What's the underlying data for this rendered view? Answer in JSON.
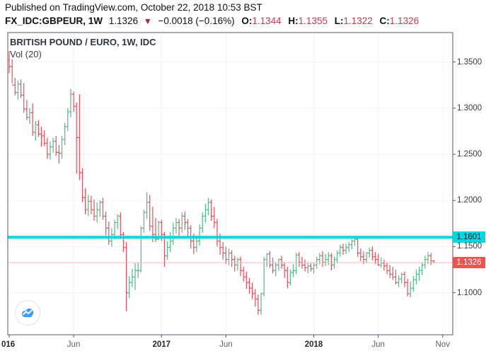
{
  "header": {
    "published_line": "Published on TradingView.com, October 22, 2018 10:53 BST",
    "symbol": "FX_IDC:GBPEUR, 1W",
    "last_price": "1.1326",
    "direction_icon": "down-triangle",
    "change": "−0.0018 (−0.16%)",
    "ohlc": [
      {
        "label": "O:",
        "value": "1.1344"
      },
      {
        "label": "H:",
        "value": "1.1355"
      },
      {
        "label": "L:",
        "value": "1.1322"
      },
      {
        "label": "C:",
        "value": "1.1326"
      }
    ]
  },
  "legend": {
    "title": "BRITISH POUND / EURO, 1W, IDC",
    "indicator": "Vol (20)"
  },
  "levels": {
    "resistance": {
      "price": "1.1601",
      "value": 1.1601
    },
    "last": {
      "price": "1.1326",
      "value": 1.1326
    }
  },
  "y_axis": {
    "ticks": [
      {
        "label": "1.3500",
        "value": 1.35
      },
      {
        "label": "1.3000",
        "value": 1.3
      },
      {
        "label": "1.2500",
        "value": 1.25
      },
      {
        "label": "1.2000",
        "value": 1.2
      },
      {
        "label": "1.1500",
        "value": 1.15
      },
      {
        "label": "1.1000",
        "value": 1.1
      }
    ]
  },
  "x_axis": {
    "ticks": [
      {
        "label": "016",
        "week": 0,
        "year": true,
        "clipped": true
      },
      {
        "label": "Jun",
        "week": 22,
        "year": false,
        "clipped": false
      },
      {
        "label": "2017",
        "week": 52,
        "year": true,
        "clipped": false
      },
      {
        "label": "Jun",
        "week": 74,
        "year": false,
        "clipped": false
      },
      {
        "label": "2018",
        "week": 104,
        "year": true,
        "clipped": false
      },
      {
        "label": "Jun",
        "week": 126,
        "year": false,
        "clipped": false
      },
      {
        "label": "Nov",
        "week": 148,
        "year": false,
        "clipped": false
      }
    ]
  },
  "colors": {
    "up": "#53b987",
    "down": "#eb4d5c",
    "resistance_line": "#00d7e2",
    "last_price_line": "#f6b9bf",
    "grid": "#f2f3f5",
    "frame": "#555a64",
    "value_red": "#c83a4b",
    "logo_blue": "#3d9df4"
  },
  "chart_data": {
    "type": "ohlc-bar",
    "title": "BRITISH POUND / EURO, 1W, IDC",
    "symbol": "FX_IDC:GBPEUR",
    "interval": "1W",
    "x_range": [
      "Jan 2016",
      "Nov 2018"
    ],
    "y_range": [
      1.055,
      1.38
    ],
    "gridlines": true,
    "levels": [
      {
        "name": "resistance",
        "value": 1.1601
      },
      {
        "name": "last-price",
        "value": 1.1326
      }
    ],
    "last_bar_ohlc": {
      "o": 1.1344,
      "h": 1.1355,
      "l": 1.1322,
      "c": 1.1326
    },
    "bars_format": [
      "open",
      "high",
      "low",
      "close"
    ],
    "bars": [
      [
        1.352,
        1.362,
        1.338,
        1.345
      ],
      [
        1.345,
        1.353,
        1.327,
        1.325
      ],
      [
        1.325,
        1.333,
        1.314,
        1.317
      ],
      [
        1.317,
        1.33,
        1.309,
        1.326
      ],
      [
        1.326,
        1.331,
        1.311,
        1.314
      ],
      [
        1.314,
        1.327,
        1.295,
        1.299
      ],
      [
        1.299,
        1.309,
        1.287,
        1.29
      ],
      [
        1.29,
        1.3,
        1.283,
        1.295
      ],
      [
        1.295,
        1.305,
        1.27,
        1.274
      ],
      [
        1.274,
        1.286,
        1.265,
        1.282
      ],
      [
        1.282,
        1.287,
        1.269,
        1.272
      ],
      [
        1.272,
        1.28,
        1.258,
        1.27
      ],
      [
        1.27,
        1.276,
        1.259,
        1.262
      ],
      [
        1.262,
        1.268,
        1.245,
        1.25
      ],
      [
        1.25,
        1.264,
        1.244,
        1.258
      ],
      [
        1.258,
        1.268,
        1.252,
        1.264
      ],
      [
        1.264,
        1.27,
        1.248,
        1.252
      ],
      [
        1.252,
        1.26,
        1.24,
        1.251
      ],
      [
        1.251,
        1.27,
        1.245,
        1.266
      ],
      [
        1.266,
        1.284,
        1.26,
        1.28
      ],
      [
        1.28,
        1.3,
        1.275,
        1.296
      ],
      [
        1.296,
        1.321,
        1.29,
        1.315
      ],
      [
        1.315,
        1.318,
        1.296,
        1.302
      ],
      [
        1.302,
        1.306,
        1.229,
        1.268
      ],
      [
        1.268,
        1.315,
        1.222,
        1.23
      ],
      [
        1.23,
        1.235,
        1.198,
        1.203
      ],
      [
        1.203,
        1.213,
        1.185,
        1.19
      ],
      [
        1.19,
        1.206,
        1.183,
        1.199
      ],
      [
        1.199,
        1.205,
        1.185,
        1.19
      ],
      [
        1.19,
        1.201,
        1.178,
        1.183
      ],
      [
        1.183,
        1.198,
        1.176,
        1.19
      ],
      [
        1.19,
        1.2,
        1.182,
        1.198
      ],
      [
        1.198,
        1.203,
        1.179,
        1.183
      ],
      [
        1.183,
        1.188,
        1.162,
        1.17
      ],
      [
        1.17,
        1.177,
        1.152,
        1.156
      ],
      [
        1.156,
        1.17,
        1.15,
        1.163
      ],
      [
        1.163,
        1.179,
        1.158,
        1.176
      ],
      [
        1.176,
        1.185,
        1.169,
        1.183
      ],
      [
        1.183,
        1.187,
        1.158,
        1.163
      ],
      [
        1.163,
        1.166,
        1.144,
        1.149
      ],
      [
        1.149,
        1.155,
        1.08,
        1.1
      ],
      [
        1.1,
        1.118,
        1.094,
        1.111
      ],
      [
        1.111,
        1.126,
        1.106,
        1.117
      ],
      [
        1.117,
        1.132,
        1.103,
        1.124
      ],
      [
        1.124,
        1.133,
        1.116,
        1.124
      ],
      [
        1.124,
        1.172,
        1.122,
        1.17
      ],
      [
        1.17,
        1.19,
        1.165,
        1.187
      ],
      [
        1.187,
        1.209,
        1.18,
        1.198
      ],
      [
        1.198,
        1.206,
        1.167,
        1.172
      ],
      [
        1.172,
        1.193,
        1.155,
        1.163
      ],
      [
        1.163,
        1.181,
        1.155,
        1.158
      ],
      [
        1.158,
        1.178,
        1.157,
        1.176
      ],
      [
        1.176,
        1.179,
        1.156,
        1.163
      ],
      [
        1.163,
        1.166,
        1.128,
        1.14
      ],
      [
        1.14,
        1.156,
        1.136,
        1.149
      ],
      [
        1.149,
        1.166,
        1.144,
        1.156
      ],
      [
        1.156,
        1.176,
        1.152,
        1.17
      ],
      [
        1.17,
        1.181,
        1.164,
        1.176
      ],
      [
        1.176,
        1.18,
        1.162,
        1.17
      ],
      [
        1.17,
        1.187,
        1.165,
        1.183
      ],
      [
        1.183,
        1.188,
        1.168,
        1.176
      ],
      [
        1.176,
        1.18,
        1.161,
        1.17
      ],
      [
        1.17,
        1.173,
        1.148,
        1.156
      ],
      [
        1.156,
        1.164,
        1.142,
        1.149
      ],
      [
        1.149,
        1.162,
        1.144,
        1.156
      ],
      [
        1.156,
        1.174,
        1.151,
        1.17
      ],
      [
        1.17,
        1.187,
        1.165,
        1.183
      ],
      [
        1.183,
        1.196,
        1.176,
        1.19
      ],
      [
        1.19,
        1.203,
        1.184,
        1.198
      ],
      [
        1.198,
        1.201,
        1.178,
        1.183
      ],
      [
        1.183,
        1.193,
        1.17,
        1.176
      ],
      [
        1.176,
        1.18,
        1.15,
        1.156
      ],
      [
        1.156,
        1.164,
        1.141,
        1.149
      ],
      [
        1.149,
        1.155,
        1.136,
        1.143
      ],
      [
        1.143,
        1.15,
        1.131,
        1.136
      ],
      [
        1.136,
        1.148,
        1.13,
        1.143
      ],
      [
        1.143,
        1.146,
        1.128,
        1.136
      ],
      [
        1.136,
        1.14,
        1.123,
        1.13
      ],
      [
        1.13,
        1.138,
        1.124,
        1.136
      ],
      [
        1.136,
        1.139,
        1.118,
        1.124
      ],
      [
        1.124,
        1.128,
        1.112,
        1.117
      ],
      [
        1.117,
        1.123,
        1.104,
        1.111
      ],
      [
        1.111,
        1.116,
        1.099,
        1.105
      ],
      [
        1.105,
        1.111,
        1.093,
        1.099
      ],
      [
        1.099,
        1.104,
        1.085,
        1.093
      ],
      [
        1.093,
        1.098,
        1.076,
        1.081
      ],
      [
        1.081,
        1.1,
        1.076,
        1.099
      ],
      [
        1.099,
        1.139,
        1.096,
        1.136
      ],
      [
        1.136,
        1.143,
        1.128,
        1.142
      ],
      [
        1.142,
        1.145,
        1.127,
        1.13
      ],
      [
        1.13,
        1.138,
        1.121,
        1.124
      ],
      [
        1.124,
        1.133,
        1.118,
        1.13
      ],
      [
        1.13,
        1.137,
        1.124,
        1.136
      ],
      [
        1.136,
        1.14,
        1.126,
        1.13
      ],
      [
        1.13,
        1.133,
        1.116,
        1.124
      ],
      [
        1.124,
        1.128,
        1.105,
        1.111
      ],
      [
        1.111,
        1.125,
        1.108,
        1.122
      ],
      [
        1.122,
        1.131,
        1.117,
        1.124
      ],
      [
        1.124,
        1.143,
        1.12,
        1.141
      ],
      [
        1.141,
        1.144,
        1.128,
        1.133
      ],
      [
        1.133,
        1.139,
        1.126,
        1.13
      ],
      [
        1.13,
        1.136,
        1.123,
        1.127
      ],
      [
        1.127,
        1.133,
        1.121,
        1.129
      ],
      [
        1.129,
        1.132,
        1.123,
        1.126
      ],
      [
        1.126,
        1.133,
        1.121,
        1.13
      ],
      [
        1.13,
        1.139,
        1.126,
        1.136
      ],
      [
        1.136,
        1.143,
        1.131,
        1.14
      ],
      [
        1.14,
        1.145,
        1.128,
        1.133
      ],
      [
        1.133,
        1.142,
        1.129,
        1.136
      ],
      [
        1.136,
        1.144,
        1.13,
        1.14
      ],
      [
        1.14,
        1.143,
        1.124,
        1.13
      ],
      [
        1.13,
        1.139,
        1.126,
        1.136
      ],
      [
        1.136,
        1.146,
        1.132,
        1.143
      ],
      [
        1.143,
        1.152,
        1.139,
        1.149
      ],
      [
        1.149,
        1.153,
        1.141,
        1.146
      ],
      [
        1.146,
        1.153,
        1.142,
        1.149
      ],
      [
        1.149,
        1.155,
        1.144,
        1.152
      ],
      [
        1.152,
        1.158,
        1.147,
        1.156
      ],
      [
        1.156,
        1.1601,
        1.151,
        1.158
      ],
      [
        1.158,
        1.16,
        1.139,
        1.143
      ],
      [
        1.143,
        1.148,
        1.134,
        1.139
      ],
      [
        1.139,
        1.145,
        1.131,
        1.136
      ],
      [
        1.136,
        1.144,
        1.132,
        1.143
      ],
      [
        1.143,
        1.149,
        1.138,
        1.146
      ],
      [
        1.146,
        1.15,
        1.135,
        1.139
      ],
      [
        1.139,
        1.144,
        1.131,
        1.136
      ],
      [
        1.136,
        1.142,
        1.129,
        1.13
      ],
      [
        1.13,
        1.138,
        1.127,
        1.132
      ],
      [
        1.132,
        1.136,
        1.124,
        1.129
      ],
      [
        1.129,
        1.133,
        1.12,
        1.124
      ],
      [
        1.124,
        1.13,
        1.116,
        1.12
      ],
      [
        1.12,
        1.128,
        1.114,
        1.117
      ],
      [
        1.117,
        1.125,
        1.109,
        1.111
      ],
      [
        1.111,
        1.119,
        1.106,
        1.115
      ],
      [
        1.115,
        1.122,
        1.11,
        1.12
      ],
      [
        1.12,
        1.123,
        1.106,
        1.111
      ],
      [
        1.111,
        1.115,
        1.096,
        1.099
      ],
      [
        1.099,
        1.112,
        1.095,
        1.105
      ],
      [
        1.105,
        1.118,
        1.101,
        1.114
      ],
      [
        1.114,
        1.125,
        1.109,
        1.12
      ],
      [
        1.12,
        1.128,
        1.113,
        1.124
      ],
      [
        1.124,
        1.133,
        1.119,
        1.13
      ],
      [
        1.13,
        1.14,
        1.126,
        1.136
      ],
      [
        1.136,
        1.144,
        1.131,
        1.14
      ],
      [
        1.14,
        1.143,
        1.13,
        1.1344
      ],
      [
        1.1344,
        1.1355,
        1.1322,
        1.1326
      ]
    ]
  }
}
